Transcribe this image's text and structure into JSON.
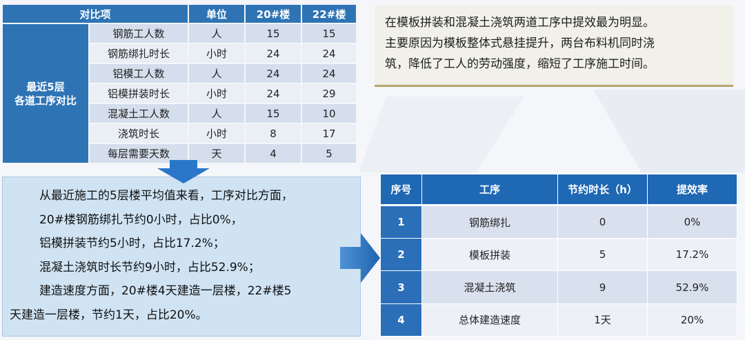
{
  "comparison_table": {
    "headers": [
      "对比项",
      "单位",
      "20#楼",
      "22#楼"
    ],
    "group_label_line1": "最近5层",
    "group_label_line2": "各道工序对比",
    "rows": [
      {
        "item": "钢筋工人数",
        "unit": "人",
        "b20": "15",
        "b22": "15"
      },
      {
        "item": "钢筋绑扎时长",
        "unit": "小时",
        "b20": "24",
        "b22": "24"
      },
      {
        "item": "铝模工人数",
        "unit": "人",
        "b20": "24",
        "b22": "24"
      },
      {
        "item": "铝模拼装时长",
        "unit": "小时",
        "b20": "24",
        "b22": "29"
      },
      {
        "item": "混凝土工人数",
        "unit": "人",
        "b20": "15",
        "b22": "10"
      },
      {
        "item": "浇筑时长",
        "unit": "小时",
        "b20": "8",
        "b22": "17"
      },
      {
        "item": "每层需要天数",
        "unit": "天",
        "b20": "4",
        "b22": "5"
      }
    ]
  },
  "note": {
    "line1": "在模板拼装和混凝土浇筑两道工序中提效最为明显。",
    "line2": "主要原因为模板整体式悬挂提升，两台布料机同时浇",
    "line3": "筑，降低了工人的劳动强度，缩短了工序施工时间。"
  },
  "summary": {
    "line1": "从最近施工的5层楼平均值来看，工序对比方面，",
    "line2": "20#楼钢筋绑扎节约0小时，占比0%，",
    "line3": "铝模拼装节约5小时，占比17.2%；",
    "line4": "混凝土浇筑时长节约9小时，占比52.9%；",
    "line5": "建造速度方面，20#楼4天建造一层楼，22#楼5",
    "line6": "天建造一层楼，节约1天，占比20%。"
  },
  "result_table": {
    "headers": [
      "序号",
      "工序",
      "节约时长（h）",
      "提效率"
    ],
    "rows": [
      {
        "no": "1",
        "process": "钢筋绑扎",
        "saved": "0",
        "rate": "0%"
      },
      {
        "no": "2",
        "process": "模板拼装",
        "saved": "5",
        "rate": "17.2%"
      },
      {
        "no": "3",
        "process": "混凝土浇筑",
        "saved": "9",
        "rate": "52.9%"
      },
      {
        "no": "4",
        "process": "总体建造速度",
        "saved": "1天",
        "rate": "20%"
      }
    ]
  },
  "colors": {
    "header_blue": "#2e74b5",
    "result_header_blue": "#1f68b3",
    "arrow_blue": "#2a77c9",
    "note_bg": "#f1f0e9",
    "summary_bg": "#cfe3f3"
  }
}
